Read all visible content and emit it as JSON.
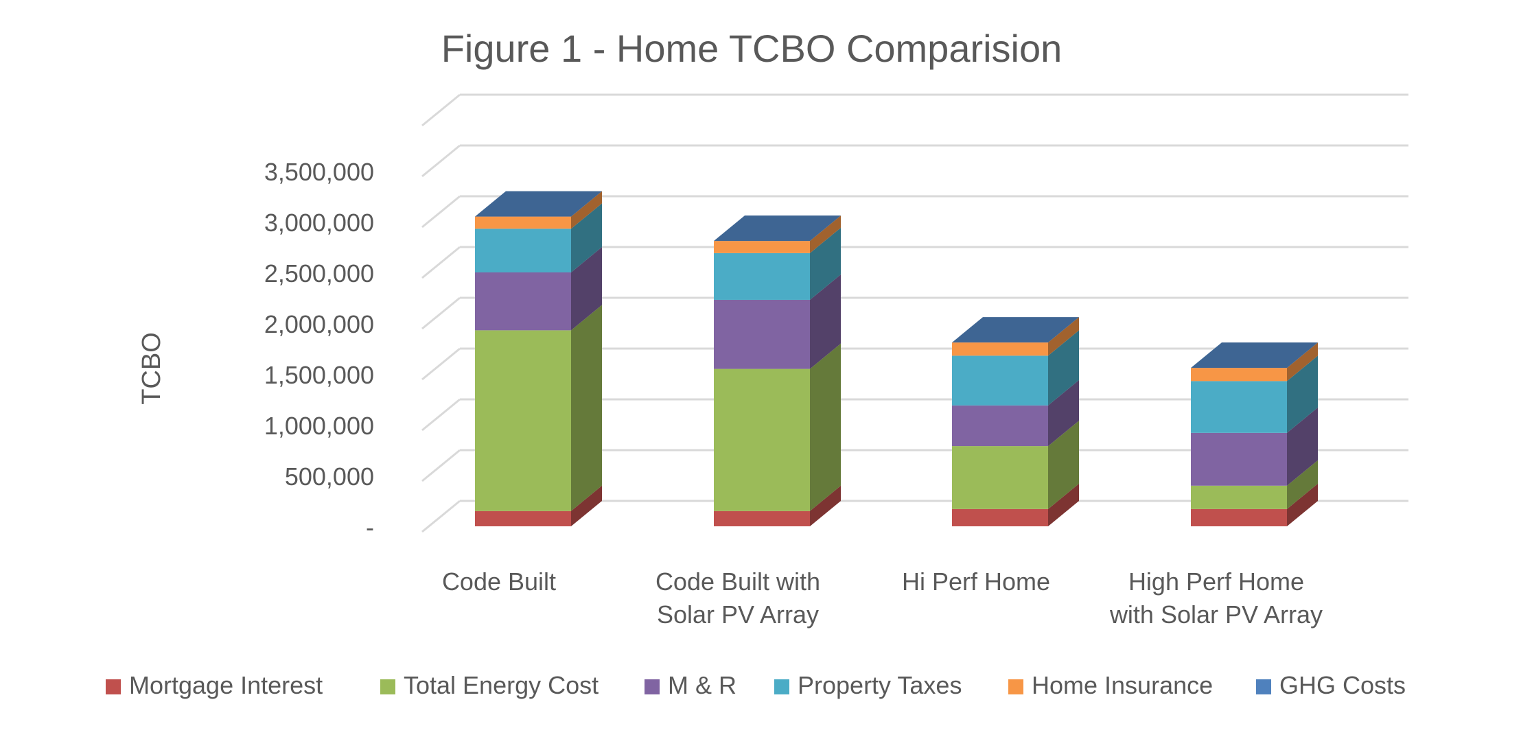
{
  "chart_data": {
    "type": "bar",
    "stacked": true,
    "style": "3d-column",
    "title": "Figure 1 - Home TCBO Comparision",
    "xlabel": "",
    "ylabel": "TCBO",
    "ylim": [
      0,
      4000000
    ],
    "yticks": [
      {
        "value": 0,
        "label": "-"
      },
      {
        "value": 500000,
        "label": "500,000"
      },
      {
        "value": 1000000,
        "label": "1,000,000"
      },
      {
        "value": 1500000,
        "label": "1,500,000"
      },
      {
        "value": 2000000,
        "label": "2,000,000"
      },
      {
        "value": 2500000,
        "label": "2,500,000"
      },
      {
        "value": 3000000,
        "label": "3,000,000"
      },
      {
        "value": 3500000,
        "label": "3,500,000"
      }
    ],
    "grid": true,
    "legend_position": "bottom",
    "categories": [
      [
        "Code Built"
      ],
      [
        "Code Built with",
        "Solar PV Array"
      ],
      [
        "Hi Perf Home"
      ],
      [
        "High Perf Home",
        "with Solar PV Array"
      ]
    ],
    "series": [
      {
        "name": "Mortgage Interest",
        "color": "#C0504D",
        "values": [
          150000,
          150000,
          170000,
          170000
        ]
      },
      {
        "name": "Total Energy Cost",
        "color": "#9BBB59",
        "values": [
          1780000,
          1400000,
          620000,
          230000
        ]
      },
      {
        "name": "M & R",
        "color": "#8064A2",
        "values": [
          570000,
          680000,
          400000,
          520000
        ]
      },
      {
        "name": "Property Taxes",
        "color": "#4BACC6",
        "values": [
          430000,
          460000,
          490000,
          510000
        ]
      },
      {
        "name": "Home Insurance",
        "color": "#F79646",
        "values": [
          120000,
          120000,
          130000,
          130000
        ]
      },
      {
        "name": "GHG Costs",
        "color": "#4F81BD",
        "values": [
          0,
          0,
          0,
          0
        ]
      }
    ]
  }
}
